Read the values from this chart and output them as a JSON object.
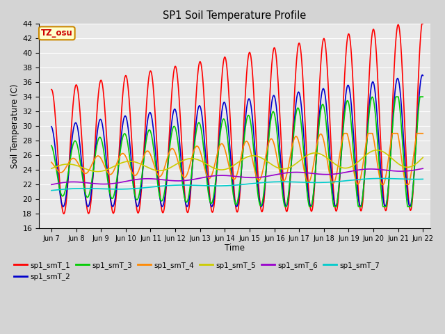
{
  "title": "SP1 Soil Temperature Profile",
  "xlabel": "Time",
  "ylabel": "Soil Temperature (C)",
  "xlim_days": [
    6.5,
    22.3
  ],
  "ylim": [
    16,
    44
  ],
  "yticks": [
    16,
    18,
    20,
    22,
    24,
    26,
    28,
    30,
    32,
    34,
    36,
    38,
    40,
    42,
    44
  ],
  "xtick_labels": [
    "Jun 7",
    "Jun 8",
    "Jun 9",
    "Jun 10",
    "Jun 11",
    "Jun 12",
    "Jun 13",
    "Jun 14",
    "Jun 15",
    "Jun 16",
    "Jun 17",
    "Jun 18",
    "Jun 19",
    "Jun 20",
    "Jun 21",
    "Jun 22"
  ],
  "xtick_positions": [
    7,
    8,
    9,
    10,
    11,
    12,
    13,
    14,
    15,
    16,
    17,
    18,
    19,
    20,
    21,
    22
  ],
  "series_colors": [
    "#ff0000",
    "#0000cc",
    "#00cc00",
    "#ff8800",
    "#cccc00",
    "#9900cc",
    "#00cccc"
  ],
  "series_labels": [
    "sp1_smT_1",
    "sp1_smT_2",
    "sp1_smT_3",
    "sp1_smT_4",
    "sp1_smT_5",
    "sp1_smT_6",
    "sp1_smT_7"
  ],
  "annotation_text": "TZ_osu",
  "annotation_bg": "#ffffcc",
  "annotation_border": "#cc8800",
  "fig_bg": "#d4d4d4",
  "plot_bg": "#e8e8e8",
  "grid_color": "#ffffff",
  "n_points": 2000
}
